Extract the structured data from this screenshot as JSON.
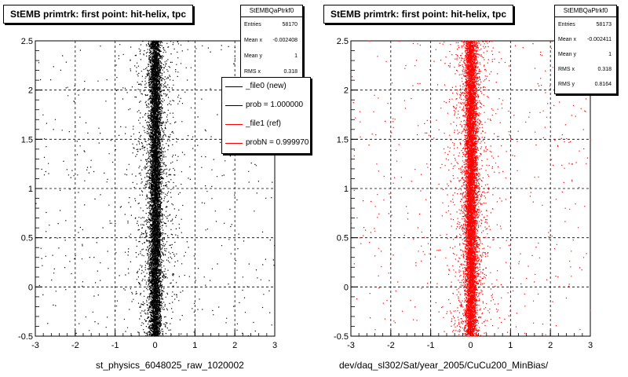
{
  "chart_data": [
    {
      "type": "scatter",
      "title": "StEMB primtrk: first point: hit-helix, tpc",
      "xlabel": "st_physics_6048025_raw_1020002",
      "xlim": [
        -3,
        3
      ],
      "ylim": [
        -0.5,
        2.5
      ],
      "x_ticks": [
        "-3",
        "-2",
        "-1",
        "0",
        "1",
        "2",
        "3"
      ],
      "y_ticks": [
        "-0.5",
        "0",
        "0.5",
        "1",
        "1.5",
        "2",
        "2.5"
      ],
      "grid": true,
      "marker_color": "#000000",
      "distribution": {
        "x_center": 0.0,
        "x_rms": 0.318,
        "entries": 58170
      },
      "stats": {
        "name": "StEMBQaPtrkf0",
        "rows": [
          {
            "key": "Entries",
            "value": "58170"
          },
          {
            "key": "Mean x",
            "value": "-0.002408"
          },
          {
            "key": "Mean y",
            "value": "1"
          },
          {
            "key": "RMS x",
            "value": "0.318"
          }
        ]
      },
      "legend": {
        "placement": "top-right",
        "entries": [
          {
            "label": "_file0 (new)",
            "color": "#000000"
          },
          {
            "label": "prob = 1.000000",
            "color": "#000000"
          },
          {
            "label": "_file1 (ref)",
            "color": "#ff0000"
          },
          {
            "label": "probN = 0.999970",
            "color": "#ff0000"
          }
        ]
      }
    },
    {
      "type": "scatter",
      "title": "StEMB primtrk: first point: hit-helix, tpc",
      "xlabel": "dev/daq_sl302/Sat/year_2005/CuCu200_MinBias/",
      "xlim": [
        -3,
        3
      ],
      "ylim": [
        -0.5,
        2.5
      ],
      "x_ticks": [
        "-3",
        "-2",
        "-1",
        "0",
        "1",
        "2",
        "3"
      ],
      "y_ticks": [
        "-0.5",
        "0",
        "0.5",
        "1",
        "1.5",
        "2",
        "2.5"
      ],
      "grid": true,
      "marker_color": "#ff0000",
      "distribution": {
        "x_center": 0.0,
        "x_rms": 0.318,
        "entries": 58173
      },
      "stats": {
        "name": "StEMBQaPtrkf0",
        "rows": [
          {
            "key": "Entries",
            "value": "58173"
          },
          {
            "key": "Mean x",
            "value": "-0.002411"
          },
          {
            "key": "Mean y",
            "value": "1"
          },
          {
            "key": "RMS x",
            "value": "0.318"
          },
          {
            "key": "RMS y",
            "value": "0.8164"
          }
        ]
      }
    }
  ]
}
